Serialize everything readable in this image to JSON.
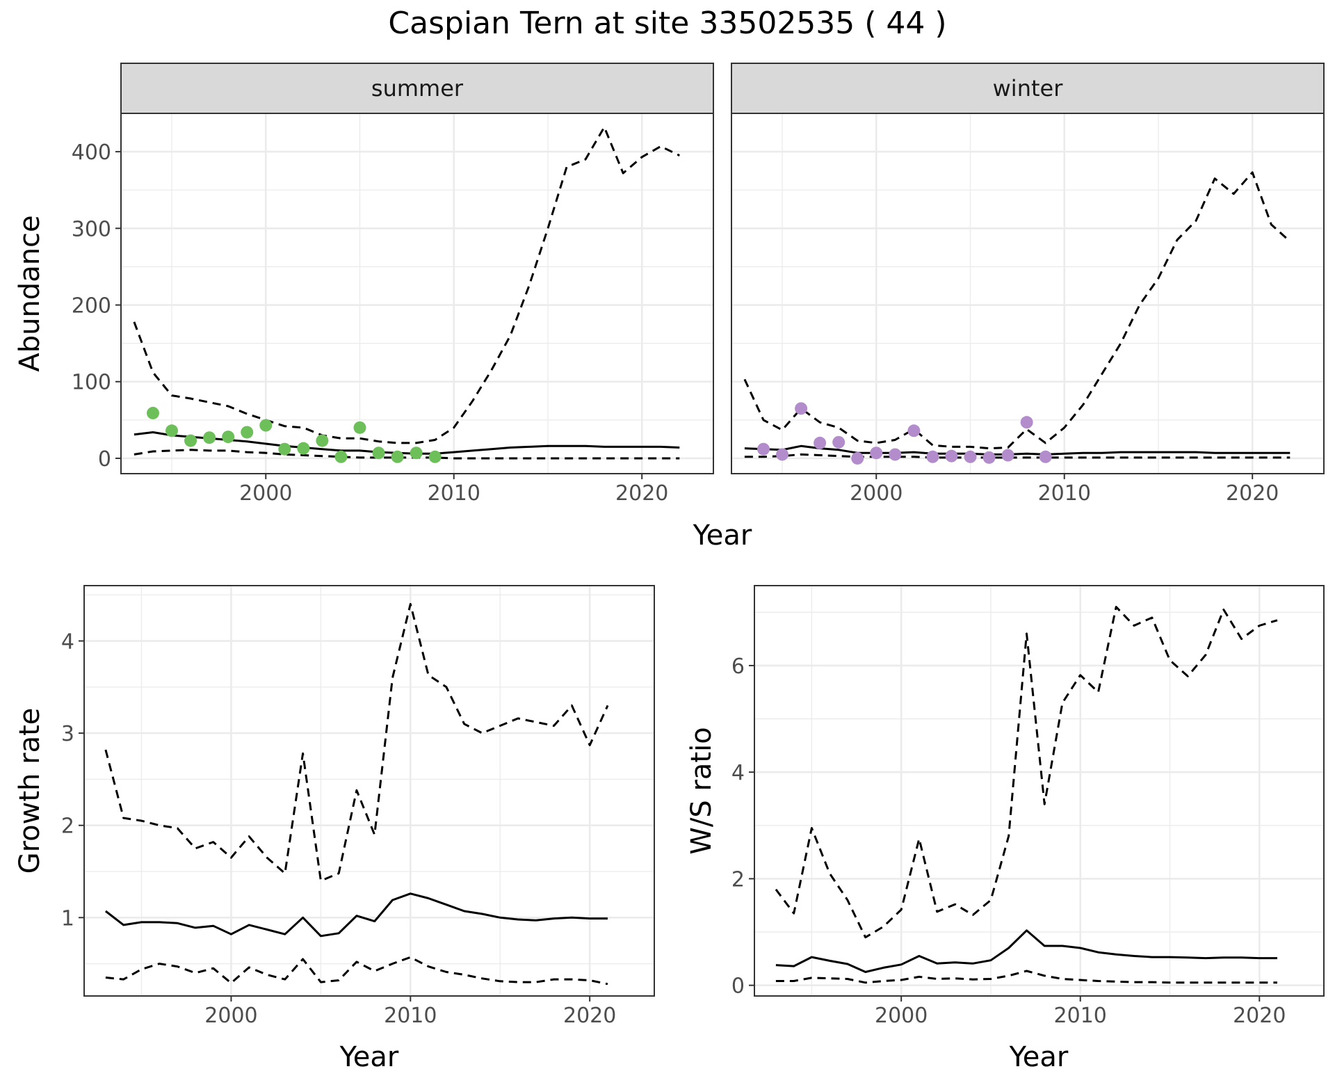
{
  "chart_data": {
    "title": "Caspian Tern at site 33502535 ( 44 )",
    "colors": {
      "summer_points": "#6dbf5a",
      "winter_points": "#b38ccc",
      "lines": "#000000",
      "panel_border": "#333333",
      "grid": "#ebebeb",
      "strip_fill": "#d9d9d9"
    },
    "abundance": {
      "type": "line",
      "xlabel": "Year",
      "ylabel": "Abundance",
      "xlim": [
        1992.3,
        2023.8
      ],
      "ylim": [
        -20,
        450
      ],
      "x_ticks": [
        2000,
        2010,
        2020
      ],
      "y_ticks": [
        0,
        100,
        200,
        300,
        400
      ],
      "grid": true,
      "panels": [
        {
          "strip": "summer",
          "points": {
            "x": [
              1994,
              1995,
              1996,
              1997,
              1998,
              1999,
              2000,
              2001,
              2002,
              2003,
              2004,
              2005,
              2006,
              2007,
              2008,
              2009
            ],
            "y": [
              59,
              36,
              23,
              27,
              28,
              34,
              43,
              12,
              13,
              23,
              2,
              40,
              7,
              2,
              7,
              2
            ]
          },
          "series": [
            {
              "style": "solid",
              "x": [
                1993,
                1994,
                1995,
                1996,
                1997,
                1998,
                1999,
                2000,
                2001,
                2002,
                2003,
                2004,
                2005,
                2006,
                2007,
                2008,
                2009,
                2010,
                2011,
                2012,
                2013,
                2014,
                2015,
                2016,
                2017,
                2018,
                2019,
                2020,
                2021,
                2022
              ],
              "y": [
                31,
                34,
                30,
                28,
                26,
                24,
                22,
                19,
                16,
                14,
                12,
                10,
                10,
                8,
                7,
                6,
                6,
                8,
                10,
                12,
                14,
                15,
                16,
                16,
                16,
                15,
                15,
                15,
                15,
                14
              ]
            },
            {
              "style": "dashed",
              "x": [
                1993,
                1994,
                1995,
                1996,
                1997,
                1998,
                1999,
                2000,
                2001,
                2002,
                2003,
                2004,
                2005,
                2006,
                2007,
                2008,
                2009,
                2010,
                2011,
                2012,
                2013,
                2014,
                2015,
                2016,
                2017,
                2018,
                2019,
                2020,
                2021,
                2022
              ],
              "y": [
                178,
                112,
                82,
                78,
                73,
                68,
                58,
                50,
                42,
                40,
                30,
                26,
                26,
                22,
                20,
                20,
                24,
                40,
                75,
                115,
                160,
                225,
                300,
                380,
                390,
                432,
                372,
                393,
                407,
                395
              ]
            },
            {
              "style": "dashed",
              "x": [
                1993,
                1994,
                1995,
                1996,
                1997,
                1998,
                1999,
                2000,
                2001,
                2002,
                2003,
                2004,
                2005,
                2006,
                2007,
                2008,
                2009,
                2010,
                2011,
                2012,
                2013,
                2014,
                2015,
                2016,
                2017,
                2018,
                2019,
                2020,
                2021,
                2022
              ],
              "y": [
                5,
                9,
                10,
                11,
                10,
                10,
                8,
                7,
                5,
                4,
                3,
                2,
                1,
                1,
                1,
                1,
                1,
                0,
                0,
                0,
                0,
                0,
                0,
                0,
                0,
                0,
                0,
                0,
                0,
                0
              ]
            }
          ]
        },
        {
          "strip": "winter",
          "points": {
            "x": [
              1994,
              1995,
              1996,
              1997,
              1998,
              1999,
              2000,
              2001,
              2002,
              2003,
              2004,
              2005,
              2006,
              2007,
              2008,
              2009
            ],
            "y": [
              12,
              5,
              65,
              20,
              21,
              0,
              7,
              5,
              36,
              2,
              3,
              2,
              1,
              4,
              47,
              2
            ]
          },
          "series": [
            {
              "style": "solid",
              "x": [
                1993,
                1994,
                1995,
                1996,
                1997,
                1998,
                1999,
                2000,
                2001,
                2002,
                2003,
                2004,
                2005,
                2006,
                2007,
                2008,
                2009,
                2010,
                2011,
                2012,
                2013,
                2014,
                2015,
                2016,
                2017,
                2018,
                2019,
                2020,
                2021,
                2022
              ],
              "y": [
                13,
                12,
                11,
                16,
                13,
                11,
                7,
                7,
                7,
                8,
                6,
                6,
                6,
                5,
                5,
                6,
                5,
                6,
                7,
                7,
                8,
                8,
                8,
                8,
                8,
                7,
                7,
                7,
                7,
                7
              ]
            },
            {
              "style": "dashed",
              "x": [
                1993,
                1994,
                1995,
                1996,
                1997,
                1998,
                1999,
                2000,
                2001,
                2002,
                2003,
                2004,
                2005,
                2006,
                2007,
                2008,
                2009,
                2010,
                2011,
                2012,
                2013,
                2014,
                2015,
                2016,
                2017,
                2018,
                2019,
                2020,
                2021,
                2022
              ],
              "y": [
                103,
                50,
                37,
                65,
                47,
                40,
                23,
                20,
                24,
                38,
                17,
                15,
                15,
                13,
                14,
                38,
                20,
                40,
                70,
                110,
                150,
                200,
                235,
                285,
                310,
                365,
                345,
                373,
                305,
                283
              ]
            },
            {
              "style": "dashed",
              "x": [
                1993,
                1994,
                1995,
                1996,
                1997,
                1998,
                1999,
                2000,
                2001,
                2002,
                2003,
                2004,
                2005,
                2006,
                2007,
                2008,
                2009,
                2010,
                2011,
                2012,
                2013,
                2014,
                2015,
                2016,
                2017,
                2018,
                2019,
                2020,
                2021,
                2022
              ],
              "y": [
                2,
                2,
                3,
                5,
                4,
                3,
                2,
                2,
                2,
                2,
                1,
                1,
                1,
                1,
                1,
                1,
                1,
                1,
                1,
                1,
                1,
                1,
                1,
                1,
                1,
                1,
                1,
                1,
                1,
                1
              ]
            }
          ]
        }
      ]
    },
    "growth": {
      "type": "line",
      "xlabel": "Year",
      "ylabel": "Growth rate",
      "xlim": [
        1991.8,
        2023.6
      ],
      "ylim": [
        0.15,
        4.6
      ],
      "x_ticks": [
        2000,
        2010,
        2020
      ],
      "y_ticks": [
        1,
        2,
        3,
        4
      ],
      "grid": true,
      "series": [
        {
          "style": "solid",
          "x": [
            1993,
            1994,
            1995,
            1996,
            1997,
            1998,
            1999,
            2000,
            2001,
            2002,
            2003,
            2004,
            2005,
            2006,
            2007,
            2008,
            2009,
            2010,
            2011,
            2012,
            2013,
            2014,
            2015,
            2016,
            2017,
            2018,
            2019,
            2020,
            2021
          ],
          "y": [
            1.07,
            0.92,
            0.95,
            0.95,
            0.94,
            0.89,
            0.91,
            0.82,
            0.92,
            0.87,
            0.82,
            1.0,
            0.8,
            0.83,
            1.02,
            0.96,
            1.19,
            1.26,
            1.21,
            1.14,
            1.07,
            1.04,
            1.0,
            0.98,
            0.97,
            0.99,
            1.0,
            0.99,
            0.99
          ]
        },
        {
          "style": "dashed",
          "x": [
            1993,
            1994,
            1995,
            1996,
            1997,
            1998,
            1999,
            2000,
            2001,
            2002,
            2003,
            2004,
            2005,
            2006,
            2007,
            2008,
            2009,
            2010,
            2011,
            2012,
            2013,
            2014,
            2015,
            2016,
            2017,
            2018,
            2019,
            2020,
            2021
          ],
          "y": [
            2.82,
            2.08,
            2.05,
            2.0,
            1.97,
            1.75,
            1.82,
            1.65,
            1.88,
            1.65,
            1.48,
            2.78,
            1.4,
            1.48,
            2.38,
            1.9,
            3.6,
            4.4,
            3.63,
            3.5,
            3.1,
            3.0,
            3.08,
            3.16,
            3.12,
            3.08,
            3.3,
            2.87,
            3.3
          ]
        },
        {
          "style": "dashed",
          "x": [
            1993,
            1994,
            1995,
            1996,
            1997,
            1998,
            1999,
            2000,
            2001,
            2002,
            2003,
            2004,
            2005,
            2006,
            2007,
            2008,
            2009,
            2010,
            2011,
            2012,
            2013,
            2014,
            2015,
            2016,
            2017,
            2018,
            2019,
            2020,
            2021
          ],
          "y": [
            0.35,
            0.33,
            0.44,
            0.5,
            0.47,
            0.4,
            0.45,
            0.29,
            0.46,
            0.38,
            0.33,
            0.55,
            0.3,
            0.32,
            0.52,
            0.42,
            0.5,
            0.57,
            0.47,
            0.41,
            0.38,
            0.34,
            0.31,
            0.3,
            0.3,
            0.33,
            0.33,
            0.32,
            0.28
          ]
        }
      ]
    },
    "ratio": {
      "type": "line",
      "xlabel": "Year",
      "ylabel": "W/S ratio",
      "xlim": [
        1991.8,
        2023.6
      ],
      "ylim": [
        -0.2,
        7.5
      ],
      "x_ticks": [
        2000,
        2010,
        2020
      ],
      "y_ticks": [
        0,
        2,
        4,
        6
      ],
      "grid": true,
      "series": [
        {
          "style": "solid",
          "x": [
            1993,
            1994,
            1995,
            1996,
            1997,
            1998,
            1999,
            2000,
            2001,
            2002,
            2003,
            2004,
            2005,
            2006,
            2007,
            2008,
            2009,
            2010,
            2011,
            2012,
            2013,
            2014,
            2015,
            2016,
            2017,
            2018,
            2019,
            2020,
            2021
          ],
          "y": [
            0.38,
            0.36,
            0.53,
            0.46,
            0.4,
            0.25,
            0.33,
            0.39,
            0.55,
            0.41,
            0.43,
            0.41,
            0.47,
            0.7,
            1.03,
            0.74,
            0.74,
            0.7,
            0.62,
            0.58,
            0.55,
            0.53,
            0.53,
            0.52,
            0.51,
            0.52,
            0.52,
            0.51,
            0.51
          ]
        },
        {
          "style": "dashed",
          "x": [
            1993,
            1994,
            1995,
            1996,
            1997,
            1998,
            1999,
            2000,
            2001,
            2002,
            2003,
            2004,
            2005,
            2006,
            2007,
            2008,
            2009,
            2010,
            2011,
            2012,
            2013,
            2014,
            2015,
            2016,
            2017,
            2018,
            2019,
            2020,
            2021
          ],
          "y": [
            1.8,
            1.35,
            2.95,
            2.1,
            1.6,
            0.9,
            1.1,
            1.42,
            2.75,
            1.38,
            1.52,
            1.32,
            1.6,
            2.8,
            6.6,
            3.4,
            5.3,
            5.82,
            5.5,
            7.1,
            6.75,
            6.9,
            6.1,
            5.8,
            6.2,
            7.05,
            6.5,
            6.75,
            6.85
          ]
        },
        {
          "style": "dashed",
          "x": [
            1993,
            1994,
            1995,
            1996,
            1997,
            1998,
            1999,
            2000,
            2001,
            2002,
            2003,
            2004,
            2005,
            2006,
            2007,
            2008,
            2009,
            2010,
            2011,
            2012,
            2013,
            2014,
            2015,
            2016,
            2017,
            2018,
            2019,
            2020,
            2021
          ],
          "y": [
            0.08,
            0.08,
            0.14,
            0.13,
            0.12,
            0.05,
            0.08,
            0.1,
            0.16,
            0.12,
            0.13,
            0.11,
            0.12,
            0.18,
            0.27,
            0.18,
            0.12,
            0.1,
            0.08,
            0.07,
            0.06,
            0.06,
            0.05,
            0.05,
            0.05,
            0.05,
            0.05,
            0.05,
            0.05
          ]
        }
      ]
    }
  }
}
